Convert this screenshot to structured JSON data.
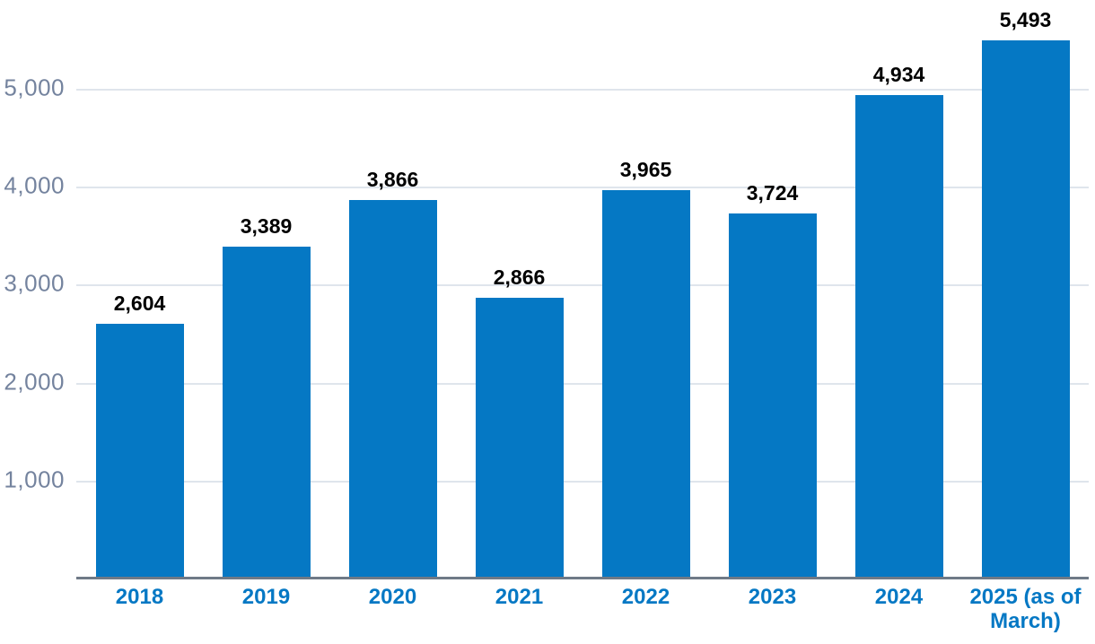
{
  "chart_data": {
    "type": "bar",
    "title": "",
    "xlabel": "",
    "ylabel": "",
    "categories": [
      "2018",
      "2019",
      "2020",
      "2021",
      "2022",
      "2023",
      "2024",
      "2025 (as of March)"
    ],
    "values": [
      2604,
      3389,
      3866,
      2866,
      3965,
      3724,
      4934,
      5493
    ],
    "value_labels": [
      "2,604",
      "3,389",
      "3,866",
      "2,866",
      "3,965",
      "3,724",
      "4,934",
      "5,493"
    ],
    "ylim": [
      0,
      5906
    ],
    "yticks": [
      1000,
      2000,
      3000,
      4000,
      5000
    ],
    "ytick_labels": [
      "1,000",
      "2,000",
      "3,000",
      "4,000",
      "5,000"
    ],
    "grid": "horizontal-behind-bars",
    "legend": "none",
    "colors": {
      "bar": "#0578c4",
      "value_label": "#000000",
      "x_tick_label": "#0578c4",
      "y_tick_label": "#74839e",
      "gridline": "#dfe5ec",
      "axis_line": "#6f7a87",
      "background": "#ffffff"
    }
  }
}
